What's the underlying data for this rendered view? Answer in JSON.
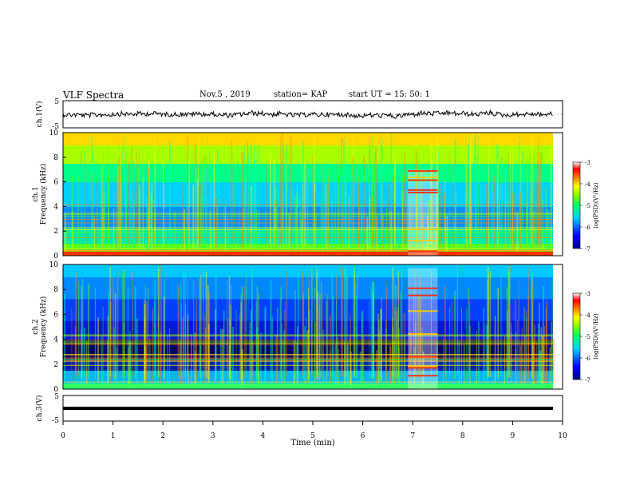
{
  "header": {
    "title": "VLF Spectra",
    "date": "Nov.5 , 2019",
    "station": "station= KAP",
    "start": "start UT =  15: 50: 1"
  },
  "chart_data": [
    {
      "type": "line",
      "panel": "waveform-ch1",
      "ylabel": "ch.1(V)",
      "ylim": [
        -5,
        5
      ],
      "yticks": [
        "5",
        "-5"
      ],
      "xlim": [
        0,
        10
      ],
      "series": [
        {
          "note_visible": "black noisy trace around 0 V spanning 0-9.8 min"
        }
      ]
    },
    {
      "type": "heatmap",
      "panel": "spectrogram-ch1",
      "ylabel_line1": "ch.1",
      "ylabel_line2": "Frequency (kHz)",
      "ylim": [
        0,
        10
      ],
      "yticks": [
        "0",
        "2",
        "4",
        "6",
        "8",
        "10"
      ],
      "xlim": [
        0,
        10
      ],
      "colorbar": {
        "label": "log(PSD)(V²/Hz)",
        "range": [
          -7,
          -3
        ],
        "ticks": [
          "-3",
          "-4",
          "-5",
          "-6",
          "-7"
        ]
      }
    },
    {
      "type": "heatmap",
      "panel": "spectrogram-ch2",
      "ylabel_line1": "ch.2",
      "ylabel_line2": "Frequency (kHz)",
      "ylim": [
        0,
        10
      ],
      "yticks": [
        "0",
        "2",
        "4",
        "6",
        "8",
        "10"
      ],
      "xlim": [
        0,
        10
      ],
      "colorbar": {
        "label": "log(PSD)(V²/Hz)",
        "range": [
          -7,
          -3
        ],
        "ticks": [
          "-3",
          "-4",
          "-5",
          "-6",
          "-7"
        ]
      }
    },
    {
      "type": "line",
      "panel": "waveform-ch3",
      "ylabel": "ch.3(V)",
      "ylim": [
        -5,
        5
      ],
      "yticks": [
        "5",
        "-5"
      ],
      "xlim": [
        0,
        10
      ],
      "xlabel": "Time (min)",
      "xticks": [
        "0",
        "1",
        "2",
        "3",
        "4",
        "5",
        "6",
        "7",
        "8",
        "9",
        "10"
      ]
    }
  ],
  "colors": {
    "colormap": [
      "#00008b",
      "#0000ff",
      "#00aaff",
      "#00ffaa",
      "#66ff00",
      "#ffff00",
      "#ff8800",
      "#ff0000",
      "#ff99cc",
      "#ffffff"
    ]
  }
}
